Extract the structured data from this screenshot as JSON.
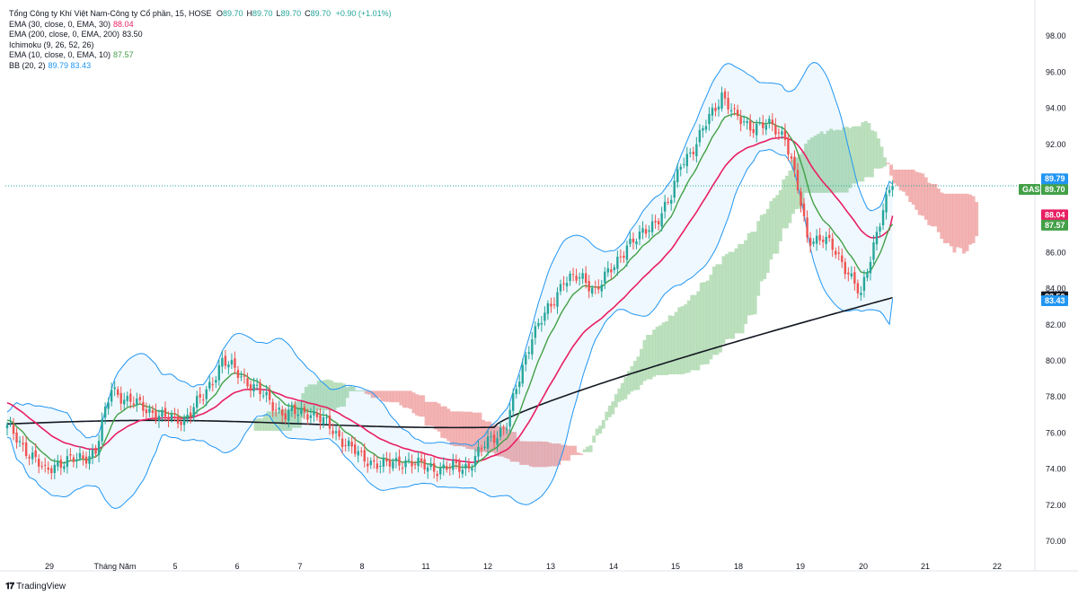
{
  "legend": {
    "title": "Tổng Công ty Khí Việt Nam-Công ty Cổ phần, 15, HOSE",
    "ohlc": [
      {
        "k": "O",
        "v": "89.70"
      },
      {
        "k": "H",
        "v": "89.70"
      },
      {
        "k": "L",
        "v": "89.70"
      },
      {
        "k": "C",
        "v": "89.70"
      }
    ],
    "change": "+0.90 (+1.01%)",
    "indicators": [
      {
        "label": "EMA (30, close, 0, EMA, 30)",
        "value": "88.04",
        "color": "#e91e63"
      },
      {
        "label": "EMA (200, close, 0, EMA, 200)",
        "value": "83.50",
        "color": "#131722"
      },
      {
        "label": "Ichimoku (9, 26, 52, 26)",
        "value": "",
        "color": "#131722"
      },
      {
        "label": "EMA (10, close, 0, EMA, 10)",
        "value": "87.57",
        "color": "#43a047"
      },
      {
        "label": "BB (20, 2)",
        "value": "89.79  83.43",
        "color": "#2196f3"
      }
    ]
  },
  "brand": "TradingView",
  "chart_data": {
    "type": "candlestick",
    "symbol": "GAS",
    "interval": "15",
    "exchange": "HOSE",
    "ylim": [
      69.0,
      99.5
    ],
    "y_ticks": [
      "70.00",
      "72.00",
      "74.00",
      "76.00",
      "78.00",
      "80.00",
      "82.00",
      "84.00",
      "86.00",
      "88.00",
      "90.00",
      "92.00",
      "94.00",
      "96.00",
      "98.00"
    ],
    "x_ticks": [
      "29",
      "Tháng Năm",
      "5",
      "6",
      "7",
      "8",
      "11",
      "12",
      "13",
      "14",
      "15",
      "18",
      "19",
      "20",
      "21",
      "22"
    ],
    "anchors": [
      [
        0,
        76.3
      ],
      [
        8,
        74.7
      ],
      [
        12,
        73.8
      ],
      [
        15,
        74.3
      ],
      [
        22,
        74.5
      ],
      [
        28,
        75.0
      ],
      [
        33,
        78.5
      ],
      [
        38,
        77.8
      ],
      [
        46,
        77.2
      ],
      [
        50,
        76.8
      ],
      [
        56,
        76.8
      ],
      [
        62,
        78.0
      ],
      [
        68,
        80.0
      ],
      [
        74,
        79.2
      ],
      [
        80,
        78.2
      ],
      [
        88,
        77.0
      ],
      [
        96,
        77.2
      ],
      [
        104,
        76.0
      ],
      [
        112,
        74.6
      ],
      [
        120,
        74.2
      ],
      [
        126,
        74.5
      ],
      [
        130,
        74.2
      ],
      [
        138,
        74.0
      ],
      [
        146,
        74.2
      ],
      [
        152,
        75.5
      ],
      [
        158,
        76.5
      ],
      [
        162,
        79.0
      ],
      [
        166,
        81.5
      ],
      [
        172,
        83.0
      ],
      [
        176,
        84.6
      ],
      [
        182,
        84.5
      ],
      [
        186,
        84.0
      ],
      [
        192,
        85.2
      ],
      [
        196,
        86.5
      ],
      [
        200,
        86.8
      ],
      [
        206,
        88.0
      ],
      [
        210,
        89.0
      ],
      [
        213,
        91.0
      ],
      [
        218,
        92.0
      ],
      [
        222,
        93.5
      ],
      [
        226,
        94.8
      ],
      [
        230,
        93.5
      ],
      [
        236,
        93.0
      ],
      [
        242,
        93.0
      ],
      [
        246,
        92.5
      ],
      [
        250,
        89.5
      ],
      [
        253,
        86.8
      ],
      [
        258,
        86.8
      ],
      [
        262,
        86.0
      ],
      [
        266,
        85.0
      ],
      [
        270,
        83.5
      ],
      [
        274,
        86.5
      ],
      [
        277,
        88.5
      ],
      [
        280,
        89.7
      ]
    ],
    "ema10_last": 87.57,
    "ema30_last": 88.04,
    "ema200_last": 83.5,
    "bb_upper_last": 89.79,
    "bb_lower_last": 83.43,
    "last_price": 89.7,
    "price_lines": [
      {
        "label": "GAS",
        "value": 89.7,
        "color": "#43a047"
      },
      {
        "label": "",
        "value": 89.79,
        "color": "#2196f3"
      },
      {
        "label": "",
        "value": 88.04,
        "color": "#e91e63"
      },
      {
        "label": "",
        "value": 87.57,
        "color": "#43a047"
      },
      {
        "label": "",
        "value": 83.5,
        "color": "#131722"
      },
      {
        "label": "",
        "value": 83.43,
        "color": "#2196f3"
      }
    ],
    "colors": {
      "up": "#26a69a",
      "down": "#ef5350",
      "ema10": "#43a047",
      "ema30": "#e91e63",
      "ema200": "#131722",
      "bb": "#2196f3",
      "cloud_bull": "#a5d6a7",
      "cloud_bear": "#ef9a9a"
    }
  }
}
